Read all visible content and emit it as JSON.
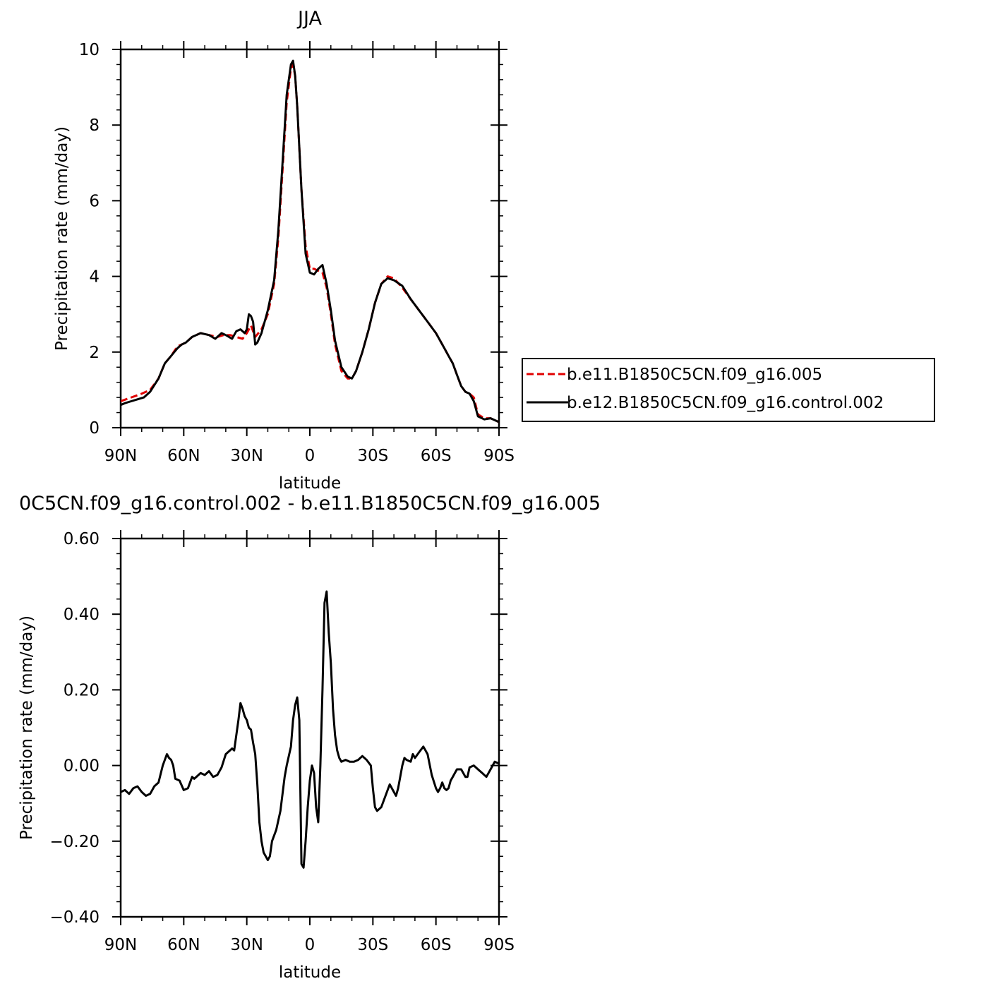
{
  "chart_data": [
    {
      "type": "line",
      "title": "JJA",
      "xlabel": "latitude",
      "ylabel": "Precipitation rate (mm/day)",
      "xlim": [
        -90,
        90
      ],
      "ylim": [
        0,
        10
      ],
      "x_ticks": [
        {
          "v": -90,
          "label": "90N"
        },
        {
          "v": -60,
          "label": "60N"
        },
        {
          "v": -30,
          "label": "30N"
        },
        {
          "v": 0,
          "label": "0"
        },
        {
          "v": 30,
          "label": "30S"
        },
        {
          "v": 60,
          "label": "60S"
        },
        {
          "v": 90,
          "label": "90S"
        }
      ],
      "y_ticks": [
        {
          "v": 0,
          "label": "0"
        },
        {
          "v": 2,
          "label": "2"
        },
        {
          "v": 4,
          "label": "4"
        },
        {
          "v": 6,
          "label": "6"
        },
        {
          "v": 8,
          "label": "8"
        },
        {
          "v": 10,
          "label": "10"
        }
      ],
      "legend_placement": "right",
      "series": [
        {
          "name": "b.e11.B1850C5CN.f09_g16.005",
          "color": "#e00000",
          "style": "dashed",
          "x": [
            -90,
            -85,
            -80,
            -76,
            -72,
            -69,
            -66,
            -63,
            -61,
            -59,
            -56,
            -52,
            -48,
            -44,
            -41,
            -38,
            -35,
            -32,
            -30,
            -28,
            -26,
            -23,
            -20,
            -17,
            -15,
            -13,
            -11,
            -9,
            -8,
            -7,
            -6,
            -4,
            -2,
            0,
            2,
            4,
            6,
            8,
            10,
            12,
            15,
            18,
            20,
            22,
            25,
            28,
            31,
            34,
            37,
            40,
            44,
            48,
            52,
            56,
            60,
            64,
            66,
            68,
            70,
            72,
            74,
            76,
            78,
            80,
            83,
            86,
            90
          ],
          "y": [
            0.7,
            0.8,
            0.9,
            1.0,
            1.3,
            1.7,
            1.9,
            2.15,
            2.2,
            2.25,
            2.4,
            2.5,
            2.45,
            2.4,
            2.45,
            2.45,
            2.4,
            2.35,
            2.5,
            2.7,
            2.4,
            2.6,
            3.0,
            3.8,
            5.0,
            6.8,
            8.6,
            9.5,
            9.6,
            9.3,
            8.5,
            6.3,
            4.8,
            4.2,
            4.2,
            4.15,
            4.1,
            3.7,
            3.0,
            2.2,
            1.5,
            1.3,
            1.3,
            1.5,
            2.0,
            2.6,
            3.3,
            3.8,
            4.0,
            3.95,
            3.7,
            3.4,
            3.1,
            2.8,
            2.5,
            2.1,
            1.9,
            1.7,
            1.4,
            1.1,
            0.95,
            0.9,
            0.8,
            0.35,
            0.25,
            0.25,
            0.15
          ]
        },
        {
          "name": "b.e12.B1850C5CN.f09_g16.control.002",
          "color": "#000000",
          "style": "solid",
          "x": [
            -90,
            -88,
            -85,
            -82,
            -79,
            -76,
            -72,
            -69,
            -66,
            -63,
            -61,
            -59,
            -56,
            -52,
            -48,
            -45,
            -42,
            -40,
            -37,
            -35,
            -33,
            -31,
            -30,
            -29,
            -28,
            -27,
            -26,
            -25,
            -23,
            -20,
            -17,
            -15,
            -13,
            -11,
            -9,
            -8,
            -7,
            -6,
            -4,
            -2,
            0,
            2,
            4,
            6,
            8,
            10,
            12,
            15,
            18,
            20,
            22,
            25,
            28,
            31,
            34,
            37,
            40,
            44,
            48,
            52,
            56,
            60,
            64,
            66,
            68,
            70,
            72,
            74,
            76,
            78,
            80,
            83,
            86,
            90
          ],
          "y": [
            0.6,
            0.65,
            0.7,
            0.75,
            0.8,
            0.95,
            1.3,
            1.7,
            1.9,
            2.1,
            2.2,
            2.25,
            2.4,
            2.5,
            2.45,
            2.35,
            2.5,
            2.45,
            2.35,
            2.55,
            2.6,
            2.5,
            2.6,
            3.0,
            2.95,
            2.8,
            2.2,
            2.25,
            2.5,
            3.1,
            3.9,
            5.2,
            7.0,
            8.8,
            9.6,
            9.7,
            9.3,
            8.5,
            6.3,
            4.6,
            4.1,
            4.05,
            4.2,
            4.3,
            3.8,
            3.1,
            2.3,
            1.6,
            1.35,
            1.3,
            1.5,
            2.0,
            2.6,
            3.3,
            3.8,
            3.95,
            3.9,
            3.75,
            3.4,
            3.1,
            2.8,
            2.5,
            2.1,
            1.9,
            1.7,
            1.4,
            1.1,
            0.95,
            0.9,
            0.7,
            0.3,
            0.22,
            0.25,
            0.15
          ]
        }
      ]
    },
    {
      "type": "line",
      "title": "0C5CN.f09_g16.control.002 - b.e11.B1850C5CN.f09_g16.005",
      "xlabel": "latitude",
      "ylabel": "Precipitation rate (mm/day)",
      "xlim": [
        -90,
        90
      ],
      "ylim": [
        -0.4,
        0.6
      ],
      "x_ticks": [
        {
          "v": -90,
          "label": "90N"
        },
        {
          "v": -60,
          "label": "60N"
        },
        {
          "v": -30,
          "label": "30N"
        },
        {
          "v": 0,
          "label": "0"
        },
        {
          "v": 30,
          "label": "30S"
        },
        {
          "v": 60,
          "label": "60S"
        },
        {
          "v": 90,
          "label": "90S"
        }
      ],
      "y_ticks": [
        {
          "v": -0.4,
          "label": "−0.40"
        },
        {
          "v": -0.2,
          "label": "−0.20"
        },
        {
          "v": 0.0,
          "label": "0.00"
        },
        {
          "v": 0.2,
          "label": "0.20"
        },
        {
          "v": 0.4,
          "label": "0.40"
        },
        {
          "v": 0.6,
          "label": "0.60"
        }
      ],
      "series": [
        {
          "color": "#000000",
          "style": "solid",
          "x": [
            -90,
            -88,
            -86,
            -84,
            -82,
            -80,
            -78,
            -76,
            -74,
            -73,
            -72,
            -70,
            -68,
            -67,
            -66,
            -65,
            -64,
            -62,
            -60,
            -58,
            -56,
            -55,
            -54,
            -52,
            -50,
            -48,
            -46,
            -44,
            -42,
            -40,
            -38,
            -37,
            -36,
            -35,
            -34,
            -33,
            -32,
            -31,
            -30,
            -29,
            -28,
            -27,
            -26,
            -25,
            -24,
            -23,
            -22,
            -21,
            -20,
            -19,
            -18,
            -16,
            -14,
            -12,
            -11,
            -10,
            -9,
            -8,
            -7,
            -6,
            -5,
            -4,
            -3,
            -2,
            -1,
            0,
            1,
            2,
            3,
            4,
            5,
            6,
            7,
            8,
            9,
            10,
            11,
            12,
            13,
            14,
            15,
            17,
            19,
            21,
            23,
            25,
            27,
            29,
            30,
            31,
            32,
            34,
            36,
            37,
            38,
            40,
            41,
            42,
            44,
            45,
            46,
            48,
            49,
            50,
            52,
            54,
            56,
            58,
            60,
            61,
            62,
            63,
            64,
            65,
            66,
            67,
            68,
            70,
            72,
            74,
            75,
            76,
            78,
            80,
            82,
            84,
            86,
            88,
            90
          ],
          "y": [
            -0.07,
            -0.065,
            -0.075,
            -0.06,
            -0.055,
            -0.07,
            -0.08,
            -0.075,
            -0.055,
            -0.05,
            -0.045,
            0.0,
            0.03,
            0.02,
            0.015,
            0.0,
            -0.035,
            -0.04,
            -0.065,
            -0.06,
            -0.03,
            -0.035,
            -0.03,
            -0.02,
            -0.025,
            -0.015,
            -0.03,
            -0.025,
            -0.005,
            0.03,
            0.04,
            0.045,
            0.04,
            0.08,
            0.12,
            0.165,
            0.15,
            0.13,
            0.12,
            0.1,
            0.095,
            0.06,
            0.03,
            -0.05,
            -0.15,
            -0.2,
            -0.23,
            -0.24,
            -0.25,
            -0.24,
            -0.2,
            -0.17,
            -0.12,
            -0.03,
            0.0,
            0.025,
            0.05,
            0.12,
            0.16,
            0.18,
            0.12,
            -0.26,
            -0.27,
            -0.2,
            -0.11,
            -0.04,
            0.0,
            -0.02,
            -0.11,
            -0.15,
            0.0,
            0.2,
            0.43,
            0.46,
            0.35,
            0.27,
            0.15,
            0.08,
            0.04,
            0.02,
            0.01,
            0.015,
            0.01,
            0.01,
            0.015,
            0.025,
            0.015,
            0.0,
            -0.06,
            -0.11,
            -0.12,
            -0.11,
            -0.08,
            -0.065,
            -0.05,
            -0.07,
            -0.08,
            -0.06,
            0.0,
            0.02,
            0.015,
            0.01,
            0.03,
            0.02,
            0.035,
            0.05,
            0.03,
            -0.025,
            -0.06,
            -0.07,
            -0.06,
            -0.045,
            -0.06,
            -0.065,
            -0.06,
            -0.04,
            -0.03,
            -0.01,
            -0.01,
            -0.03,
            -0.03,
            -0.005,
            0.0,
            -0.01,
            -0.02,
            -0.03,
            -0.01,
            0.01,
            0.005
          ]
        }
      ]
    }
  ]
}
